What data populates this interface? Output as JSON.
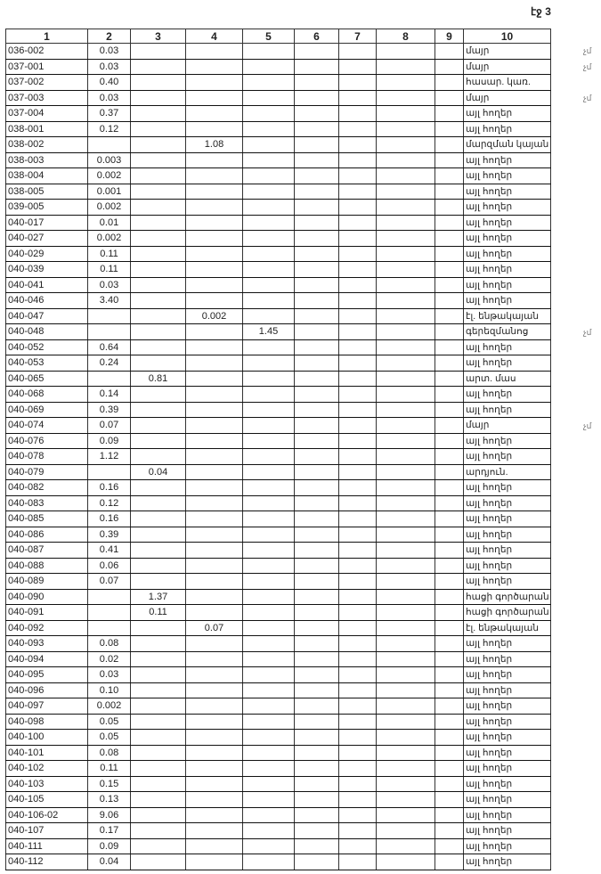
{
  "page_label": "էջ 3",
  "headers": [
    "1",
    "2",
    "3",
    "4",
    "5",
    "6",
    "7",
    "8",
    "9",
    "10"
  ],
  "rows": [
    {
      "id": "036-002",
      "col": 2,
      "value": "0.03",
      "type": "մայր",
      "note": "չմ"
    },
    {
      "id": "037-001",
      "col": 2,
      "value": "0.03",
      "type": "մայր",
      "note": "չմ"
    },
    {
      "id": "037-002",
      "col": 2,
      "value": "0.40",
      "type": "հասար. կառ."
    },
    {
      "id": "037-003",
      "col": 2,
      "value": "0.03",
      "type": "մայր",
      "note": "չմ"
    },
    {
      "id": "037-004",
      "col": 2,
      "value": "0.37",
      "type": "այլ հողեր"
    },
    {
      "id": "038-001",
      "col": 2,
      "value": "0.12",
      "type": "այլ հողեր"
    },
    {
      "id": "038-002",
      "col": 4,
      "value": "1.08",
      "type": "մարզման կայան"
    },
    {
      "id": "038-003",
      "col": 2,
      "value": "0.003",
      "type": "այլ հողեր"
    },
    {
      "id": "038-004",
      "col": 2,
      "value": "0.002",
      "type": "այլ հողեր"
    },
    {
      "id": "038-005",
      "col": 2,
      "value": "0.001",
      "type": "այլ հողեր"
    },
    {
      "id": "039-005",
      "col": 2,
      "value": "0.002",
      "type": "այլ հողեր"
    },
    {
      "id": "040-017",
      "col": 2,
      "value": "0.01",
      "type": "այլ հողեր"
    },
    {
      "id": "040-027",
      "col": 2,
      "value": "0.002",
      "type": "այլ հողեր"
    },
    {
      "id": "040-029",
      "col": 2,
      "value": "0.11",
      "type": "այլ հողեր"
    },
    {
      "id": "040-039",
      "col": 2,
      "value": "0.11",
      "type": "այլ հողեր"
    },
    {
      "id": "040-041",
      "col": 2,
      "value": "0.03",
      "type": "այլ հողեր"
    },
    {
      "id": "040-046",
      "col": 2,
      "value": "3.40",
      "type": "այլ հողեր"
    },
    {
      "id": "040-047",
      "col": 4,
      "value": "0.002",
      "type": "էլ. ենթակայան"
    },
    {
      "id": "040-048",
      "col": 5,
      "value": "1.45",
      "type": "գերեզմանոց",
      "note": "չմ"
    },
    {
      "id": "040-052",
      "col": 2,
      "value": "0.64",
      "type": "այլ հողեր"
    },
    {
      "id": "040-053",
      "col": 2,
      "value": "0.24",
      "type": "այլ հողեր"
    },
    {
      "id": "040-065",
      "col": 3,
      "value": "0.81",
      "type": "արտ. մաս"
    },
    {
      "id": "040-068",
      "col": 2,
      "value": "0.14",
      "type": "այլ հողեր"
    },
    {
      "id": "040-069",
      "col": 2,
      "value": "0.39",
      "type": "այլ հողեր"
    },
    {
      "id": "040-074",
      "col": 2,
      "value": "0.07",
      "type": "մայր",
      "note": "չմ"
    },
    {
      "id": "040-076",
      "col": 2,
      "value": "0.09",
      "type": "այլ հողեր"
    },
    {
      "id": "040-078",
      "col": 2,
      "value": "1.12",
      "type": "այլ հողեր"
    },
    {
      "id": "040-079",
      "col": 3,
      "value": "0.04",
      "type": "արդյուն."
    },
    {
      "id": "040-082",
      "col": 2,
      "value": "0.16",
      "type": "այլ հողեր"
    },
    {
      "id": "040-083",
      "col": 2,
      "value": "0.12",
      "type": "այլ հողեր"
    },
    {
      "id": "040-085",
      "col": 2,
      "value": "0.16",
      "type": "այլ հողեր"
    },
    {
      "id": "040-086",
      "col": 2,
      "value": "0.39",
      "type": "այլ հողեր"
    },
    {
      "id": "040-087",
      "col": 2,
      "value": "0.41",
      "type": "այլ հողեր"
    },
    {
      "id": "040-088",
      "col": 2,
      "value": "0.06",
      "type": "այլ հողեր"
    },
    {
      "id": "040-089",
      "col": 2,
      "value": "0.07",
      "type": "այլ հողեր"
    },
    {
      "id": "040-090",
      "col": 3,
      "value": "1.37",
      "type": "հացի գործարան"
    },
    {
      "id": "040-091",
      "col": 3,
      "value": "0.11",
      "type": "հացի գործարան"
    },
    {
      "id": "040-092",
      "col": 4,
      "value": "0.07",
      "type": "էլ. ենթակայան"
    },
    {
      "id": "040-093",
      "col": 2,
      "value": "0.08",
      "type": "այլ հողեր"
    },
    {
      "id": "040-094",
      "col": 2,
      "value": "0.02",
      "type": "այլ հողեր"
    },
    {
      "id": "040-095",
      "col": 2,
      "value": "0.03",
      "type": "այլ հողեր"
    },
    {
      "id": "040-096",
      "col": 2,
      "value": "0.10",
      "type": "այլ հողեր"
    },
    {
      "id": "040-097",
      "col": 2,
      "value": "0.002",
      "type": "այլ հողեր"
    },
    {
      "id": "040-098",
      "col": 2,
      "value": "0.05",
      "type": "այլ հողեր"
    },
    {
      "id": "040-100",
      "col": 2,
      "value": "0.05",
      "type": "այլ հողեր"
    },
    {
      "id": "040-101",
      "col": 2,
      "value": "0.08",
      "type": "այլ հողեր"
    },
    {
      "id": "040-102",
      "col": 2,
      "value": "0.11",
      "type": "այլ հողեր"
    },
    {
      "id": "040-103",
      "col": 2,
      "value": "0.15",
      "type": "այլ հողեր"
    },
    {
      "id": "040-105",
      "col": 2,
      "value": "0.13",
      "type": "այլ հողեր"
    },
    {
      "id": "040-106-02",
      "col": 2,
      "value": "9.06",
      "type": "այլ հողեր"
    },
    {
      "id": "040-107",
      "col": 2,
      "value": "0.17",
      "type": "այլ հողեր"
    },
    {
      "id": "040-111",
      "col": 2,
      "value": "0.09",
      "type": "այլ հողեր"
    },
    {
      "id": "040-112",
      "col": 2,
      "value": "0.04",
      "type": "այլ հողեր"
    }
  ]
}
